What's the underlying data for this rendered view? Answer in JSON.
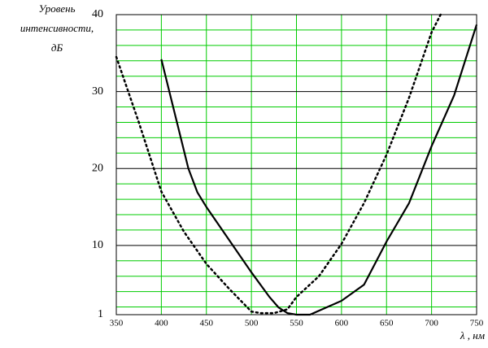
{
  "chart_data": {
    "type": "line",
    "y_label": [
      "Уровень",
      "интенсивности,",
      "дБ"
    ],
    "x_label": "λ , нм",
    "xlim": [
      350,
      750
    ],
    "xticks": [
      350,
      400,
      450,
      500,
      550,
      600,
      650,
      700,
      750
    ],
    "ylim": [
      1,
      40
    ],
    "yticks": [
      1,
      10,
      20,
      30,
      40
    ],
    "y_minor_ticks": [
      2,
      4,
      6,
      8,
      12,
      14,
      16,
      18,
      22,
      24,
      26,
      28,
      32,
      34,
      36,
      38
    ],
    "grid_color": "#00cc00",
    "series": [
      {
        "color": "#000000",
        "dash": "solid",
        "x": [
          400,
          430,
          440,
          450,
          500,
          520,
          530,
          540,
          550,
          565,
          600,
          625,
          650,
          675,
          700,
          725,
          750
        ],
        "values": [
          34.2,
          20,
          16.9,
          15,
          6.5,
          3.3,
          1.95,
          1.2,
          1,
          1,
          2.8,
          4.9,
          10.5,
          15.5,
          22.9,
          29.5,
          38.7
        ]
      },
      {
        "color": "#000000",
        "dash": "dotted",
        "x": [
          350,
          375,
          400,
          425,
          450,
          475,
          500,
          510,
          525,
          540,
          550,
          575,
          600,
          625,
          650,
          675,
          700,
          710
        ],
        "values": [
          34.5,
          26,
          17,
          11.8,
          7.6,
          4.4,
          1.4,
          1.2,
          1.2,
          1.7,
          3.3,
          6,
          10.2,
          15.5,
          21.8,
          29.2,
          37.7,
          40
        ]
      }
    ]
  }
}
